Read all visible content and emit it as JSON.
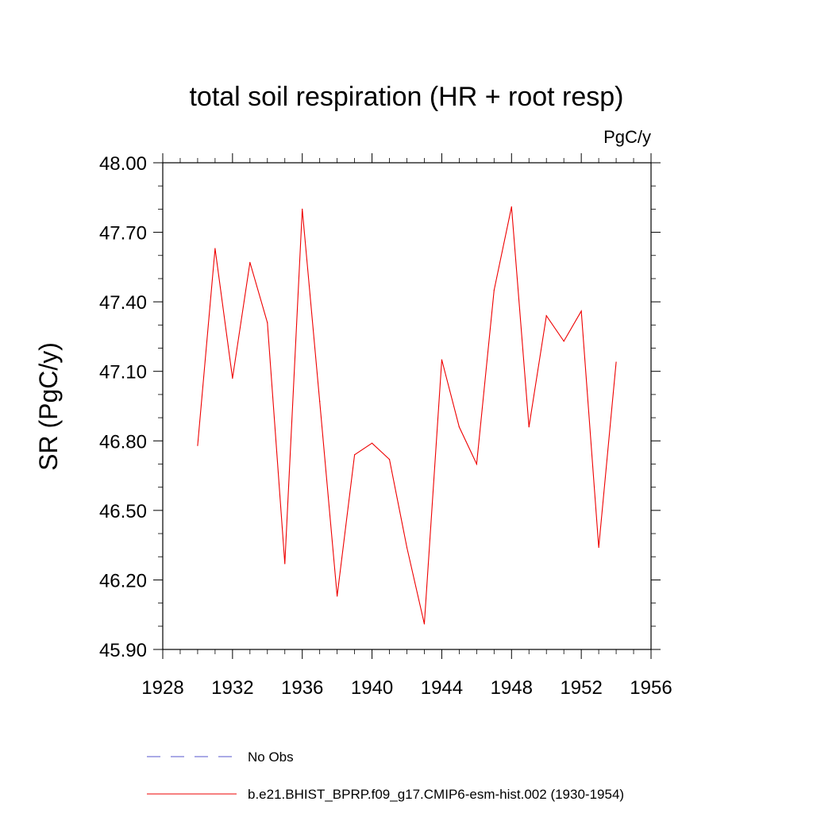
{
  "chart_data": {
    "type": "line",
    "title": "total soil respiration (HR + root resp)",
    "units_label": "PgC/y",
    "ylabel": "SR  (PgC/y)",
    "xlabel": "",
    "xlim": [
      1928,
      1956
    ],
    "ylim": [
      45.9,
      48.0
    ],
    "x_ticks": [
      1928,
      1932,
      1936,
      1940,
      1944,
      1948,
      1952,
      1956
    ],
    "x_tick_labels": [
      "1928",
      "1932",
      "1936",
      "1940",
      "1944",
      "1948",
      "1952",
      "1956"
    ],
    "y_ticks": [
      45.9,
      46.2,
      46.5,
      46.8,
      47.1,
      47.4,
      47.7,
      48.0
    ],
    "y_tick_labels": [
      "45.90",
      "46.20",
      "46.50",
      "46.80",
      "47.10",
      "47.40",
      "47.70",
      "48.00"
    ],
    "grid": false,
    "legend_position": "bottom",
    "series": [
      {
        "name": "No Obs",
        "color": "#5555cc",
        "style": "dashed",
        "x": [],
        "y": []
      },
      {
        "name": "b.e21.BHIST_BPRP.f09_g17.CMIP6-esm-hist.002 (1930-1954)",
        "color": "#ee0000",
        "style": "solid",
        "x": [
          1930,
          1931,
          1932,
          1933,
          1934,
          1935,
          1936,
          1937,
          1938,
          1939,
          1940,
          1941,
          1942,
          1943,
          1944,
          1945,
          1946,
          1947,
          1948,
          1949,
          1950,
          1951,
          1952,
          1953,
          1954
        ],
        "y": [
          46.78,
          47.63,
          47.07,
          47.57,
          47.31,
          46.27,
          47.8,
          46.97,
          46.13,
          46.74,
          46.79,
          46.72,
          46.34,
          46.01,
          47.15,
          46.86,
          46.7,
          47.45,
          47.81,
          46.86,
          47.34,
          47.23,
          47.36,
          46.34,
          47.14
        ]
      }
    ]
  }
}
